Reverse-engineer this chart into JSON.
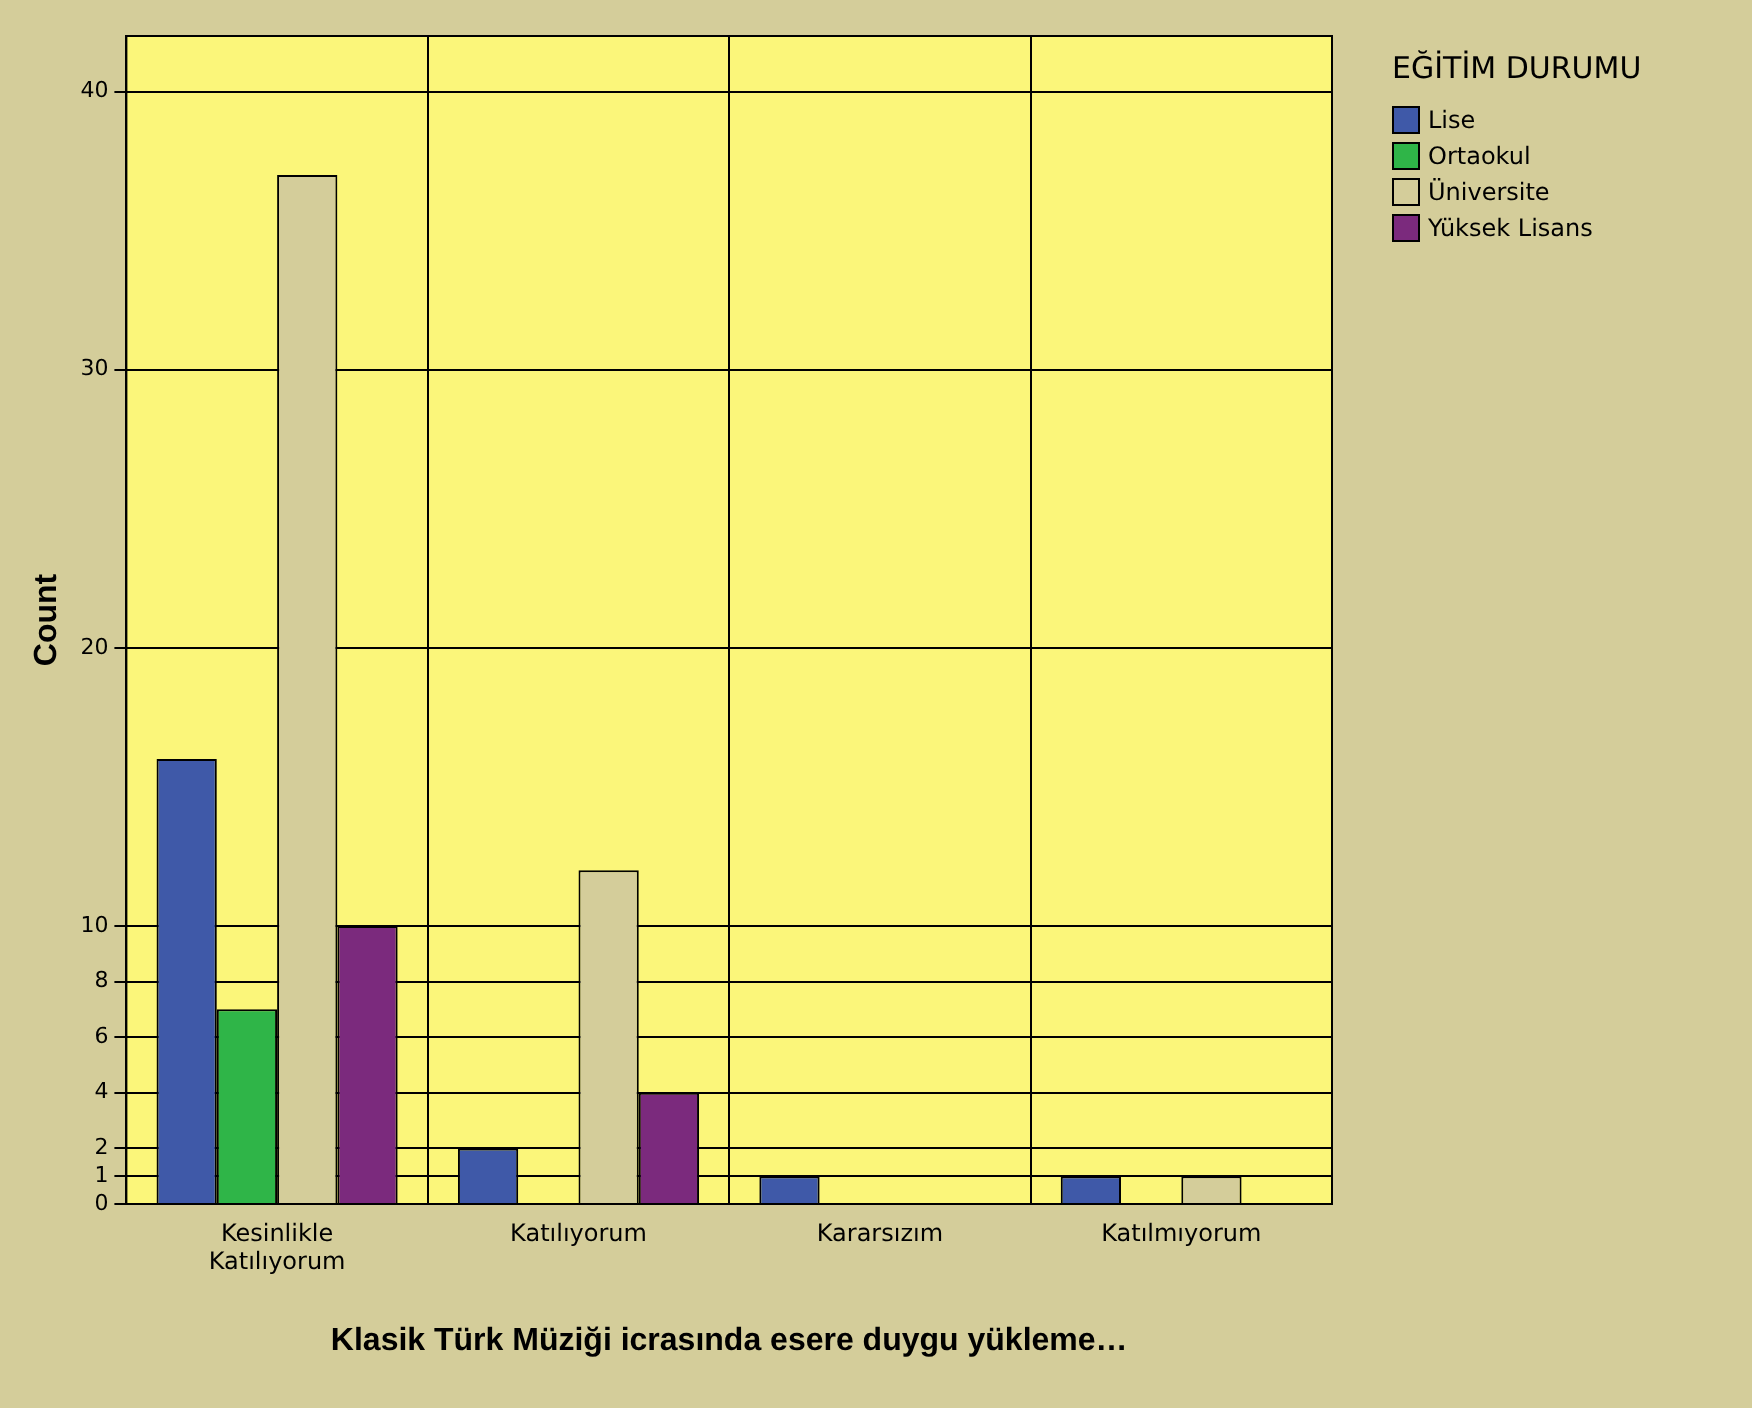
{
  "chart_data": {
    "type": "bar",
    "xlabel": "Klasik Türk Müziği icrasında esere duygu yükleme…",
    "ylabel": "Count",
    "legend_title": "EĞİTİM DURUMU",
    "categories": [
      "Kesinlikle Katılıyorum",
      "Katılıyorum",
      "Kararsızım",
      "Katılmıyorum"
    ],
    "series": [
      {
        "name": "Lise",
        "color": "#3f59a8",
        "values": [
          16,
          2,
          1,
          1
        ]
      },
      {
        "name": "Ortaokul",
        "color": "#2fb548",
        "values": [
          7,
          null,
          null,
          null
        ]
      },
      {
        "name": "Üniversite",
        "color": "#d4cd9a",
        "values": [
          37,
          12,
          null,
          1
        ]
      },
      {
        "name": "Yüksek Lisans",
        "color": "#7b2a7d",
        "values": [
          10,
          4,
          null,
          null
        ]
      }
    ],
    "ylim": [
      0,
      42
    ],
    "yticks": [
      0,
      1,
      2,
      4,
      6,
      8,
      10,
      20,
      30,
      40
    ],
    "grid": true,
    "legend": "top right"
  }
}
